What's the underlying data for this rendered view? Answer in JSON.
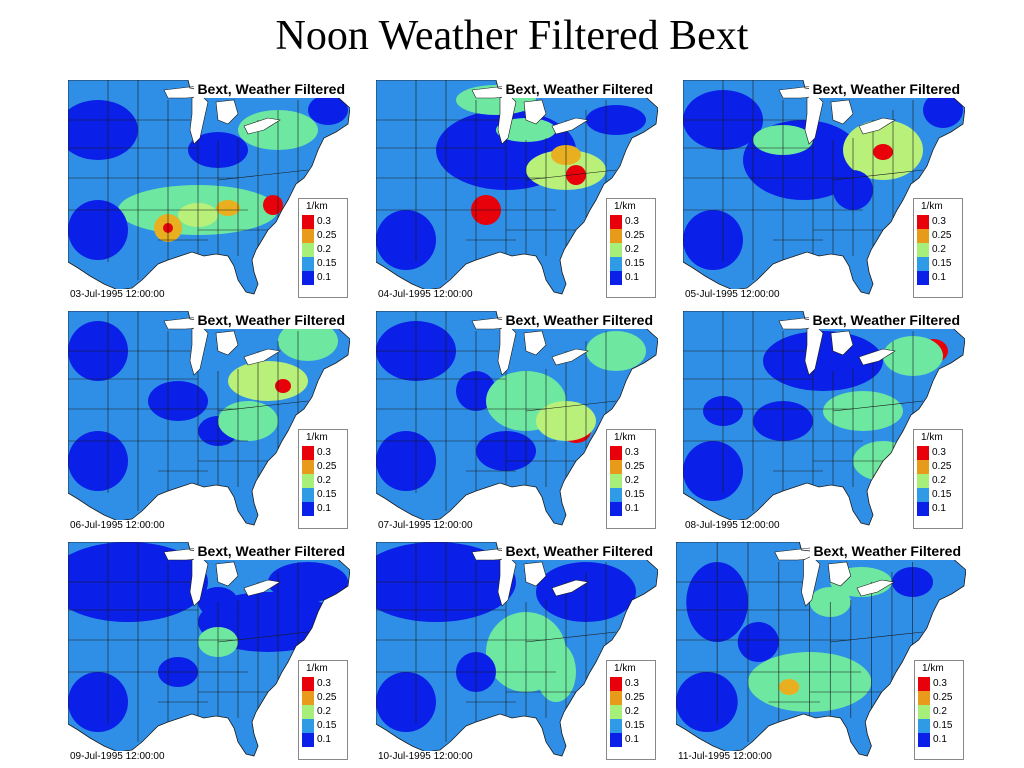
{
  "page_title": "Noon Weather Filtered Bext",
  "legend": {
    "unit": "1/km",
    "levels": [
      {
        "label": "0.3",
        "color": "#e8000b"
      },
      {
        "label": "0.25",
        "color": "#e89a1a"
      },
      {
        "label": "0.2",
        "color": "#a6f07a"
      },
      {
        "label": "0.15",
        "color": "#2f9be6"
      },
      {
        "label": "0.1",
        "color": "#0a1fe8"
      }
    ]
  },
  "map_colors": {
    "base": "#2f8fe6",
    "low": "#0a1fe8",
    "mid": "#6ee8a0",
    "high_mid": "#b8f07a",
    "orange": "#e8b020",
    "red": "#e8000b",
    "ocean": "#ffffff",
    "border": "#1a1a1a"
  },
  "panels": [
    {
      "title": "Bext, Weather Filtered",
      "date": "03-Jul-1995 12:00:00"
    },
    {
      "title": "Bext, Weather Filtered",
      "date": "04-Jul-1995 12:00:00"
    },
    {
      "title": "Bext, Weather Filtered",
      "date": "05-Jul-1995 12:00:00"
    },
    {
      "title": "Bext, Weather Filtered",
      "date": "06-Jul-1995 12:00:00"
    },
    {
      "title": "Bext, Weather Filtered",
      "date": "07-Jul-1995 12:00:00"
    },
    {
      "title": "Bext, Weather Filtered",
      "date": "08-Jul-1995 12:00:00"
    },
    {
      "title": "Bext, Weather Filtered",
      "date": "09-Jul-1995 12:00:00"
    },
    {
      "title": "Bext, Weather Filtered",
      "date": "10-Jul-1995 12:00:00"
    },
    {
      "title": "Bext, Weather Filtered",
      "date": "11-Jul-1995 12:00:00"
    }
  ]
}
